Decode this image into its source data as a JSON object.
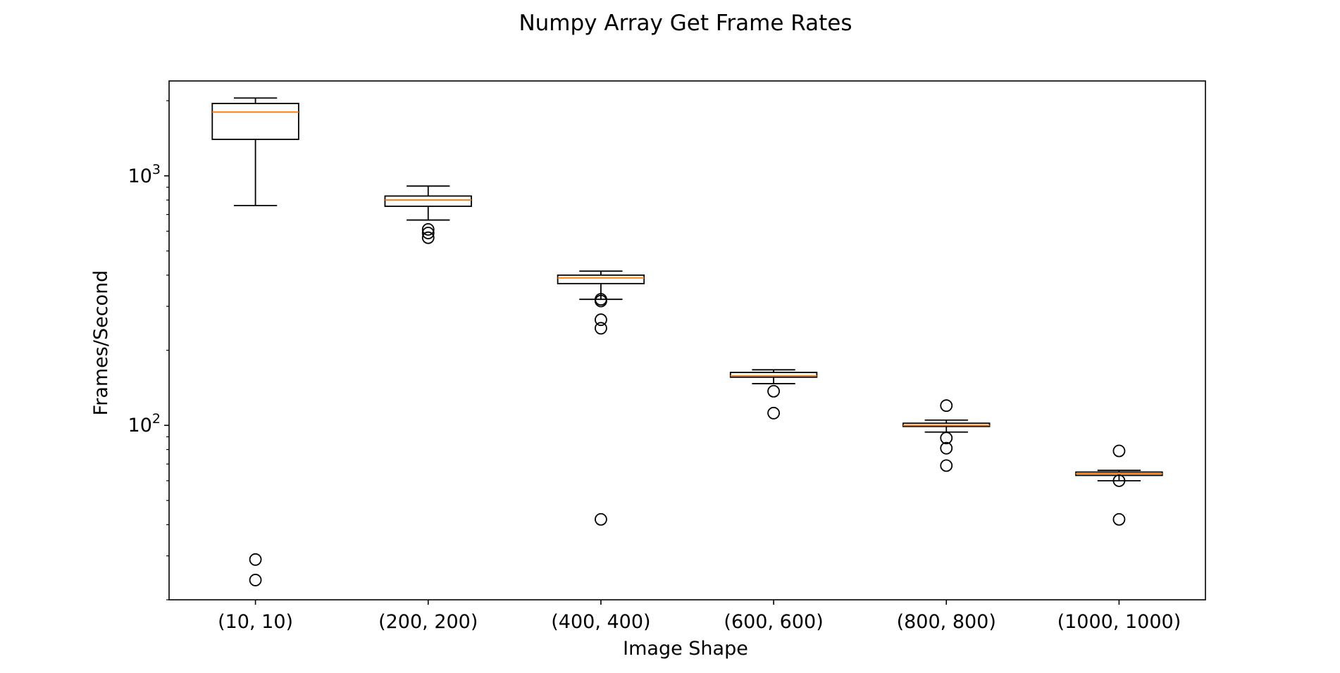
{
  "chart_data": {
    "type": "box",
    "title": "Numpy Array Get Frame Rates",
    "xlabel": "Image Shape",
    "ylabel": "Frames/Second",
    "yscale": "log",
    "ylim": [
      20,
      2400
    ],
    "yticks": [
      {
        "value": 100,
        "base": "10",
        "exp": "2"
      },
      {
        "value": 1000,
        "base": "10",
        "exp": "3"
      }
    ],
    "grid": false,
    "colors": {
      "box": "#000000",
      "median": "#ff7f0e",
      "outlier": "#000000"
    },
    "categories": [
      "(10, 10)",
      "(200, 200)",
      "(400, 400)",
      "(600, 600)",
      "(800, 800)",
      "(1000, 1000)"
    ],
    "boxes": [
      {
        "whisker_low": 760,
        "q1": 1400,
        "median": 1800,
        "q3": 1950,
        "whisker_high": 2050,
        "outliers": [
          29,
          24
        ]
      },
      {
        "whisker_low": 665,
        "q1": 755,
        "median": 800,
        "q3": 830,
        "whisker_high": 910,
        "outliers": [
          610,
          590,
          565
        ]
      },
      {
        "whisker_low": 320,
        "q1": 370,
        "median": 390,
        "q3": 400,
        "whisker_high": 415,
        "outliers": [
          320,
          315,
          265,
          245,
          42
        ]
      },
      {
        "whisker_low": 147,
        "q1": 156,
        "median": 158,
        "q3": 163,
        "whisker_high": 167,
        "outliers": [
          137,
          112
        ]
      },
      {
        "whisker_low": 94,
        "q1": 99,
        "median": 100,
        "q3": 102,
        "whisker_high": 105,
        "outliers": [
          120,
          89,
          81,
          69
        ]
      },
      {
        "whisker_low": 60,
        "q1": 63,
        "median": 64,
        "q3": 65,
        "whisker_high": 66,
        "outliers": [
          79,
          60,
          42
        ]
      }
    ]
  }
}
